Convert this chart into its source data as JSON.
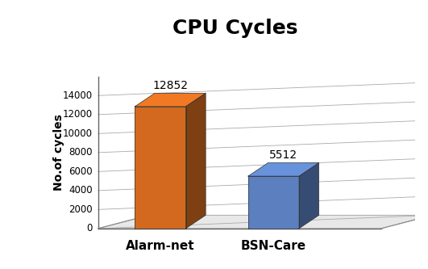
{
  "title": "CPU Cycles",
  "ylabel": "No.of cycles",
  "categories": [
    "Alarm-net",
    "BSN-Care"
  ],
  "values": [
    12852,
    5512
  ],
  "bar_colors": [
    "#D2691E",
    "#5B7FBF"
  ],
  "ylim": [
    0,
    16000
  ],
  "yticks": [
    0,
    2000,
    4000,
    6000,
    8000,
    10000,
    12000,
    14000
  ],
  "title_fontsize": 18,
  "ylabel_fontsize": 10,
  "xlabel_fontsize": 11,
  "annotation_fontsize": 10,
  "background_color": "#ffffff",
  "grid_color": "#aaaaaa"
}
